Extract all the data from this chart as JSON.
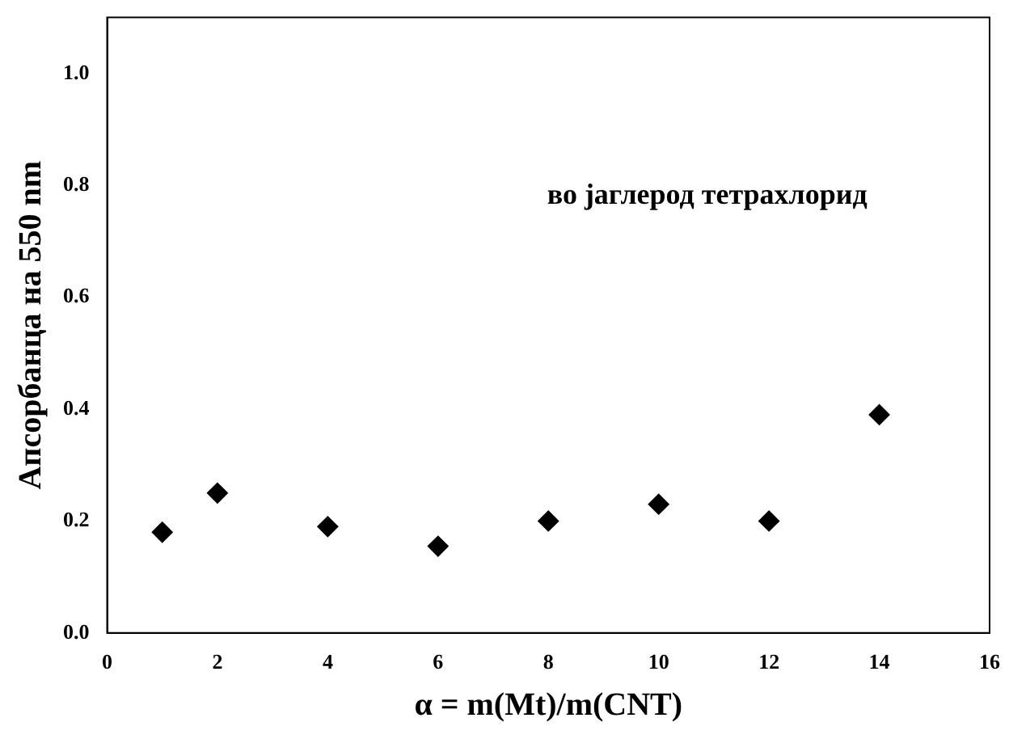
{
  "chart_data": {
    "type": "scatter",
    "xlabel": "α = m(Mt)/m(CNT)",
    "ylabel": "Апсорбанца на 550 nm",
    "annotations": [
      "во јаглерод тетрахлорид"
    ],
    "x": [
      1,
      2,
      4,
      6,
      8,
      10,
      12,
      14
    ],
    "series": [
      {
        "color": "#000000",
        "values": [
          0.18,
          0.25,
          0.19,
          0.155,
          0.2,
          0.23,
          0.2,
          0.39
        ]
      }
    ],
    "xlim": [
      0,
      16
    ],
    "xticks": [
      0,
      2,
      4,
      6,
      8,
      10,
      12,
      14,
      16
    ],
    "ylim": [
      0,
      1.1
    ],
    "yticks": [
      {
        "value": 0,
        "label": "0.0"
      },
      {
        "value": 0.2,
        "label": "0.2"
      },
      {
        "value": 0.4,
        "label": "0.4"
      },
      {
        "value": 0.6,
        "label": "0.6"
      },
      {
        "value": 0.8,
        "label": "0.8"
      },
      {
        "value": 1.0,
        "label": "1.0"
      }
    ],
    "grid": false,
    "legend": false,
    "marker": "diamond"
  }
}
